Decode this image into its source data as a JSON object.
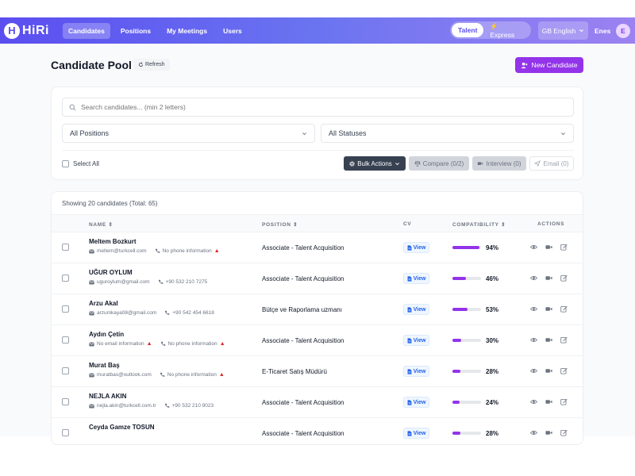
{
  "nav": {
    "logo_initial": "H",
    "logo_text": "HiRi",
    "links": [
      "Candidates",
      "Positions",
      "My Meetings",
      "Users"
    ],
    "active_link": "Candidates",
    "modes": [
      "Talent",
      "⚡ Express"
    ],
    "active_mode": "Talent",
    "language": "GB English",
    "user_name": "Enes",
    "avatar_initial": "E"
  },
  "header": {
    "title": "Candidate Pool",
    "refresh_label": "Refresh",
    "new_button_label": "New Candidate"
  },
  "filters": {
    "search_placeholder": "Search candidates... (min 2 letters)",
    "position_select": "All Positions",
    "status_select": "All Statuses",
    "select_all_label": "Select All",
    "bulk_label": "Bulk Actions",
    "compare_label": "Compare (0/2)",
    "interview_label": "Interview (0)",
    "email_label": "Email (0)"
  },
  "table": {
    "showing_text": "Showing 20 candidates (Total: 65)",
    "headers": {
      "name": "NAME ⇕",
      "position": "POSITION ⇕",
      "cv": "CV",
      "compatibility": "COMPATIBILITY ⇕",
      "actions": "ACTIONS"
    },
    "view_label": "View",
    "rows": [
      {
        "name": "Meltem Bozkurt",
        "email": "meltem@turkcell.com",
        "phone": "No phone information",
        "email_warn": false,
        "phone_warn": true,
        "position": "Associate - Talent Acquisition",
        "score": 94,
        "score_label": "94%"
      },
      {
        "name": "UĞUR OYLUM",
        "email": "uguroylum@gmail.com",
        "phone": "+90 532 210 7275",
        "email_warn": false,
        "phone_warn": false,
        "position": "Associate - Talent Acquisition",
        "score": 46,
        "score_label": "46%"
      },
      {
        "name": "Arzu Akal",
        "email": "arzumkaya08@gmail.com",
        "phone": "+90 542 454 6618",
        "email_warn": false,
        "phone_warn": false,
        "position": "Bütçe ve Raporlama uzmanı",
        "score": 53,
        "score_label": "53%"
      },
      {
        "name": "Aydın Çetin",
        "email": "No email information",
        "phone": "No phone information",
        "email_warn": true,
        "phone_warn": true,
        "position": "Associate - Talent Acquisition",
        "score": 30,
        "score_label": "30%"
      },
      {
        "name": "Murat Baş",
        "email": "muratbas@outlook.com",
        "phone": "No phone information",
        "email_warn": false,
        "phone_warn": true,
        "position": "E-Ticaret Satış Müdürü",
        "score": 28,
        "score_label": "28%"
      },
      {
        "name": "NEJLA AKIN",
        "email": "nejla.akin@turkcell.com.tr",
        "phone": "+90 532 210 9023",
        "email_warn": false,
        "phone_warn": false,
        "position": "Associate - Talent Acquisition",
        "score": 24,
        "score_label": "24%"
      },
      {
        "name": "Ceyda Gamze TOSUN",
        "email": "",
        "phone": "",
        "email_warn": false,
        "phone_warn": false,
        "position": "Associate - Talent Acquisition",
        "score": 28,
        "score_label": "28%"
      }
    ]
  },
  "colors": {
    "accent": "#9333ea",
    "nav_start": "#5b4ef0",
    "nav_end": "#9b82f0"
  }
}
